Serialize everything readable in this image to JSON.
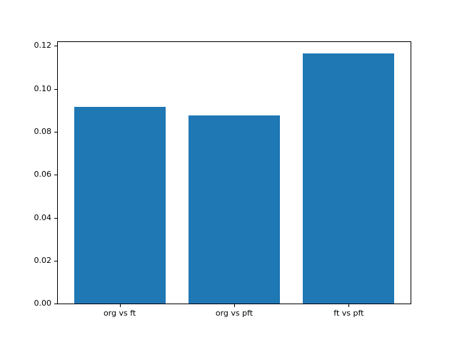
{
  "figure": {
    "background": "#ffffff",
    "bar_color": "#1f77b4",
    "axis_color": "#000000",
    "text_color": "#000000"
  },
  "chart_data": {
    "type": "bar",
    "title": "",
    "xlabel": "",
    "ylabel": "",
    "categories": [
      "org vs ft",
      "org vs pft",
      "ft vs pft"
    ],
    "values": [
      0.0917,
      0.0876,
      0.1164
    ],
    "bar_width_fraction": 0.8,
    "ylim": [
      0,
      0.1218
    ],
    "yticks": [
      0.0,
      0.02,
      0.04,
      0.06,
      0.08,
      0.1,
      0.12
    ],
    "ytick_labels": [
      "0.00",
      "0.02",
      "0.04",
      "0.06",
      "0.08",
      "0.10",
      "0.12"
    ],
    "grid": false,
    "legend_position": "none"
  }
}
